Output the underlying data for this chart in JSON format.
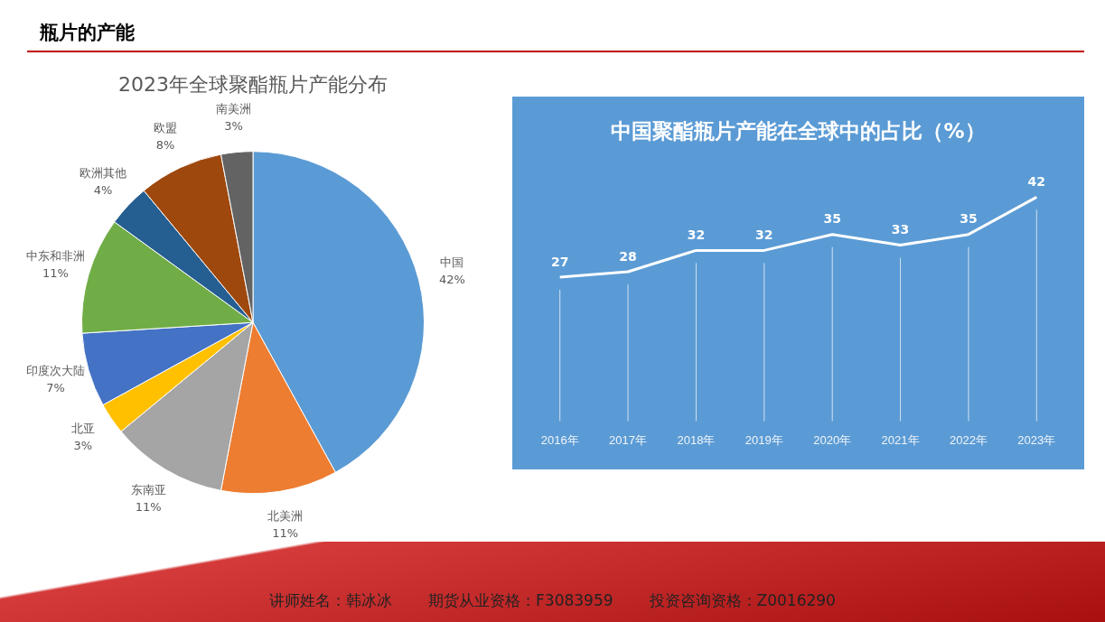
{
  "chart_data": [
    {
      "type": "other",
      "title": "瓶片的产能",
      "annotations": [
        "讲师姓名：韩冰冰",
        "期货从业资格：F3083959",
        "投资咨询资格：Z0016290"
      ]
    },
    {
      "type": "pie",
      "title": "2023年全球聚酯瓶片产能分布",
      "categories": [
        "中国",
        "北美洲",
        "东南亚",
        "北亚",
        "印度次大陆",
        "中东和非洲",
        "欧洲其他",
        "欧盟",
        "南美洲"
      ],
      "values": [
        42,
        11,
        11,
        3,
        7,
        11,
        4,
        8,
        3
      ],
      "value_labels": [
        "42%",
        "11%",
        "11%",
        "3%",
        "7%",
        "11%",
        "4%",
        "8%",
        "3%"
      ],
      "colors": [
        "#5b9bd5",
        "#ed7d31",
        "#a5a5a5",
        "#ffc000",
        "#4472c4",
        "#70ad47",
        "#255e91",
        "#9e480e",
        "#636363"
      ],
      "legend": false
    },
    {
      "type": "line",
      "title": "中国聚酯瓶片产能在全球中的占比（%）",
      "categories": [
        "2016年",
        "2017年",
        "2018年",
        "2019年",
        "2020年",
        "2021年",
        "2022年",
        "2023年"
      ],
      "values": [
        27,
        28,
        32,
        32,
        35,
        33,
        35,
        42
      ],
      "color": "#ffffff",
      "tick_labels": "x",
      "grid": "x",
      "data_labels": true,
      "legend": false
    }
  ]
}
